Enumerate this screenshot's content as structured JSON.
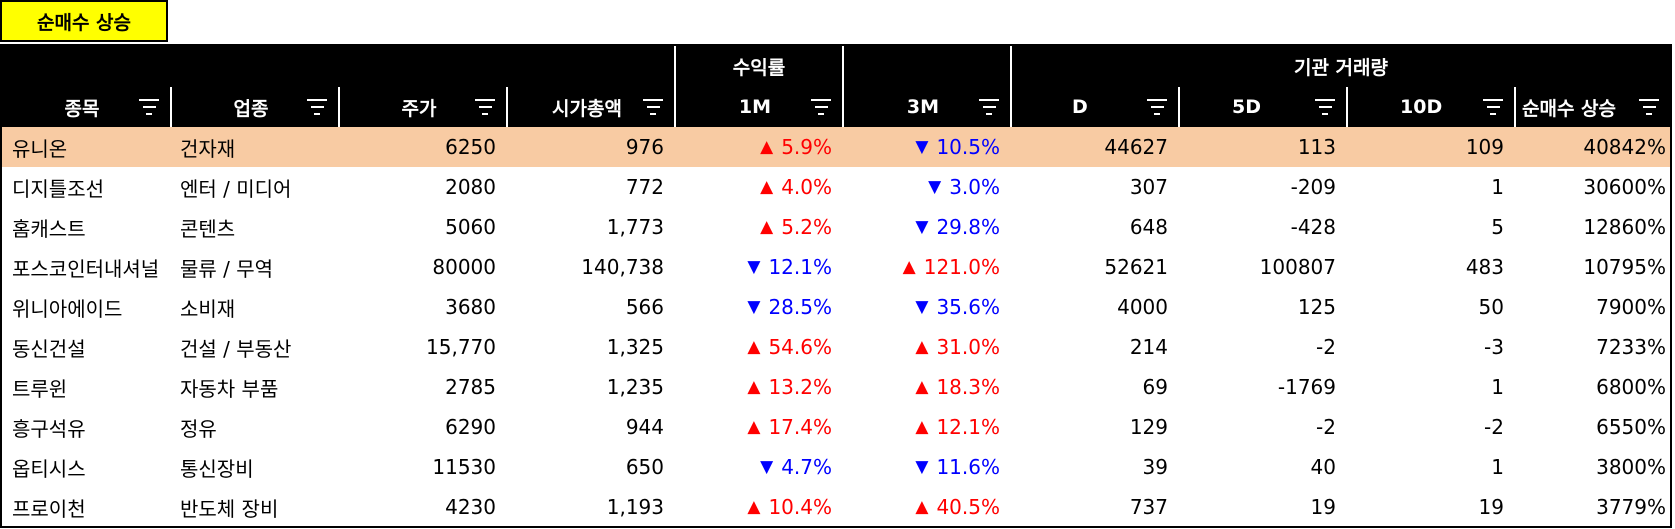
{
  "tab": {
    "label": "순매수 상승"
  },
  "groups": {
    "returns": "수익률",
    "inst_volume": "기관 거래량"
  },
  "columns": [
    "종목",
    "업종",
    "주가",
    "시가총액",
    "1M",
    "3M",
    "D",
    "5D",
    "10D",
    "순매수 상승"
  ],
  "colors": {
    "up": "#ff0000",
    "down": "#0000ff",
    "highlight": "#f8cba3",
    "tab": "#ffff00"
  },
  "rows": [
    {
      "name": "유니온",
      "sector": "건자재",
      "price": "6250",
      "mcap": "976",
      "m1_dir": "up",
      "m1_arrow": "▲",
      "m1": "5.9%",
      "m3_dir": "down",
      "m3_arrow": "▼",
      "m3": "10.5%",
      "d": "44627",
      "d5": "113",
      "d10": "109",
      "net": "40842%"
    },
    {
      "name": "디지틀조선",
      "sector": "엔터 / 미디어",
      "price": "2080",
      "mcap": "772",
      "m1_dir": "up",
      "m1_arrow": "▲",
      "m1": "4.0%",
      "m3_dir": "down",
      "m3_arrow": "▼",
      "m3": "3.0%",
      "d": "307",
      "d5": "-209",
      "d10": "1",
      "net": "30600%"
    },
    {
      "name": "홈캐스트",
      "sector": "콘텐츠",
      "price": "5060",
      "mcap": "1,773",
      "m1_dir": "up",
      "m1_arrow": "▲",
      "m1": "5.2%",
      "m3_dir": "down",
      "m3_arrow": "▼",
      "m3": "29.8%",
      "d": "648",
      "d5": "-428",
      "d10": "5",
      "net": "12860%"
    },
    {
      "name": "포스코인터내셔널",
      "sector": "물류 / 무역",
      "price": "80000",
      "mcap": "140,738",
      "m1_dir": "down",
      "m1_arrow": "▼",
      "m1": "12.1%",
      "m3_dir": "up",
      "m3_arrow": "▲",
      "m3": "121.0%",
      "d": "52621",
      "d5": "100807",
      "d10": "483",
      "net": "10795%"
    },
    {
      "name": "위니아에이드",
      "sector": "소비재",
      "price": "3680",
      "mcap": "566",
      "m1_dir": "down",
      "m1_arrow": "▼",
      "m1": "28.5%",
      "m3_dir": "down",
      "m3_arrow": "▼",
      "m3": "35.6%",
      "d": "4000",
      "d5": "125",
      "d10": "50",
      "net": "7900%"
    },
    {
      "name": "동신건설",
      "sector": "건설 / 부동산",
      "price": "15,770",
      "mcap": "1,325",
      "m1_dir": "up",
      "m1_arrow": "▲",
      "m1": "54.6%",
      "m3_dir": "up",
      "m3_arrow": "▲",
      "m3": "31.0%",
      "d": "214",
      "d5": "-2",
      "d10": "-3",
      "net": "7233%"
    },
    {
      "name": "트루윈",
      "sector": "자동차 부품",
      "price": "2785",
      "mcap": "1,235",
      "m1_dir": "up",
      "m1_arrow": "▲",
      "m1": "13.2%",
      "m3_dir": "up",
      "m3_arrow": "▲",
      "m3": "18.3%",
      "d": "69",
      "d5": "-1769",
      "d10": "1",
      "net": "6800%"
    },
    {
      "name": "흥구석유",
      "sector": "정유",
      "price": "6290",
      "mcap": "944",
      "m1_dir": "up",
      "m1_arrow": "▲",
      "m1": "17.4%",
      "m3_dir": "up",
      "m3_arrow": "▲",
      "m3": "12.1%",
      "d": "129",
      "d5": "-2",
      "d10": "-2",
      "net": "6550%"
    },
    {
      "name": "옵티시스",
      "sector": "통신장비",
      "price": "11530",
      "mcap": "650",
      "m1_dir": "down",
      "m1_arrow": "▼",
      "m1": "4.7%",
      "m3_dir": "down",
      "m3_arrow": "▼",
      "m3": "11.6%",
      "d": "39",
      "d5": "40",
      "d10": "1",
      "net": "3800%"
    },
    {
      "name": "프로이천",
      "sector": "반도체 장비",
      "price": "4230",
      "mcap": "1,193",
      "m1_dir": "up",
      "m1_arrow": "▲",
      "m1": "10.4%",
      "m3_dir": "up",
      "m3_arrow": "▲",
      "m3": "40.5%",
      "d": "737",
      "d5": "19",
      "d10": "19",
      "net": "3779%"
    }
  ]
}
